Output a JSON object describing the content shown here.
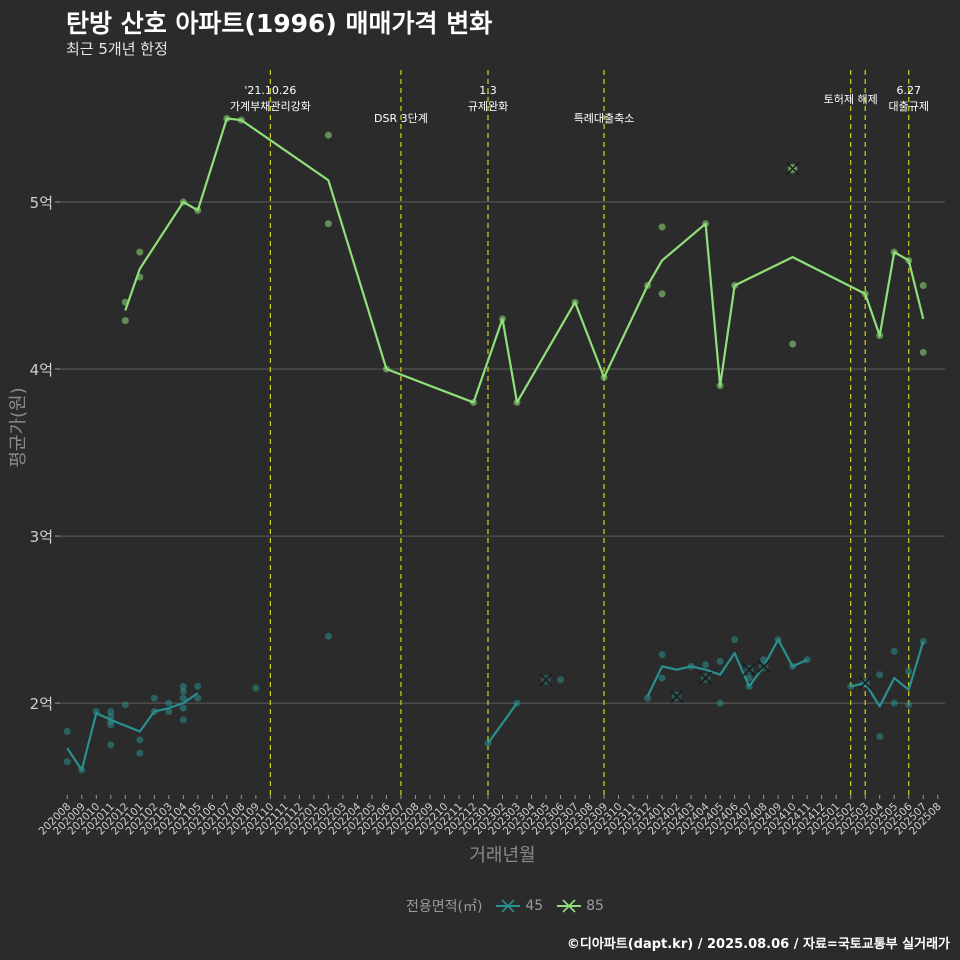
{
  "header": {
    "title": "탄방 산호 아파트(1996) 매매가격 변화",
    "subtitle": "최근 5개년 한정"
  },
  "footer": {
    "caption": "©디아파트(dapt.kr) / 2025.08.06 / 자료=국토교통부 실거래가"
  },
  "legend": {
    "title": "전용면적(㎡)",
    "items": [
      {
        "label": "45",
        "color": "#2a8f8f"
      },
      {
        "label": "85",
        "color": "#8fe07a"
      }
    ]
  },
  "chart_data": {
    "type": "line",
    "xlabel": "거래년월",
    "ylabel": "평균가(원)",
    "ylim": [
      1.45,
      5.85
    ],
    "yticks": [
      2,
      3,
      4,
      5
    ],
    "ytick_labels": [
      "2억",
      "3억",
      "4억",
      "5억"
    ],
    "grid": true,
    "legend_position": "bottom",
    "months": [
      "202008",
      "202009",
      "202010",
      "202011",
      "202012",
      "202101",
      "202102",
      "202103",
      "202104",
      "202105",
      "202106",
      "202107",
      "202108",
      "202109",
      "202110",
      "202111",
      "202112",
      "202201",
      "202202",
      "202203",
      "202204",
      "202205",
      "202206",
      "202207",
      "202208",
      "202209",
      "202210",
      "202211",
      "202212",
      "202301",
      "202302",
      "202303",
      "202304",
      "202305",
      "202306",
      "202307",
      "202308",
      "202309",
      "202310",
      "202311",
      "202312",
      "202401",
      "202402",
      "202403",
      "202404",
      "202405",
      "202406",
      "202407",
      "202408",
      "202409",
      "202410",
      "202411",
      "202412",
      "202501",
      "202502",
      "202503",
      "202504",
      "202505",
      "202506",
      "202507",
      "202508"
    ],
    "events": [
      {
        "month": "202110",
        "label": "'21.10.26\n가계부채관리강화",
        "row": 0
      },
      {
        "month": "202207",
        "label": "DSR 3단계",
        "row": 1
      },
      {
        "month": "202301",
        "label": "1.3\n규제완화",
        "row": 0
      },
      {
        "month": "202309",
        "label": "특례대출축소",
        "row": 1
      },
      {
        "month": "202502",
        "label": "토허제 해제",
        "row": 0
      },
      {
        "month": "202503",
        "label": "",
        "row": 0
      },
      {
        "month": "202506",
        "label": "6.27\n대출규제",
        "row": 0
      }
    ],
    "series": [
      {
        "name": "45",
        "color": "#2a8f8f",
        "line": [
          [
            "202008",
            1.73
          ],
          [
            "202009",
            1.6
          ],
          [
            "202010",
            1.94
          ],
          [
            "202011",
            1.9
          ],
          [
            "202101",
            1.83
          ],
          [
            "202102",
            1.95
          ],
          [
            "202103",
            1.97
          ],
          [
            "202104",
            2.0
          ],
          [
            "202105",
            2.06
          ],
          null,
          [
            "202301",
            1.76
          ],
          [
            "202303",
            2.0
          ],
          null,
          [
            "202312",
            2.04
          ],
          [
            "202401",
            2.22
          ],
          [
            "202402",
            2.2
          ],
          [
            "202403",
            2.22
          ],
          [
            "202404",
            2.2
          ],
          [
            "202405",
            2.17
          ],
          [
            "202406",
            2.3
          ],
          [
            "202407",
            2.1
          ],
          [
            "202408",
            2.22
          ],
          [
            "202409",
            2.38
          ],
          [
            "202410",
            2.22
          ],
          [
            "202411",
            2.26
          ],
          null,
          [
            "202502",
            2.1
          ],
          [
            "202503",
            2.12
          ],
          [
            "202504",
            1.98
          ],
          [
            "202505",
            2.15
          ],
          [
            "202506",
            2.08
          ],
          [
            "202507",
            2.37
          ]
        ],
        "points": [
          [
            "202008",
            1.83
          ],
          [
            "202008",
            1.65
          ],
          [
            "202009",
            1.6
          ],
          [
            "202010",
            1.95
          ],
          [
            "202011",
            1.95
          ],
          [
            "202011",
            1.92
          ],
          [
            "202011",
            1.89
          ],
          [
            "202011",
            1.87
          ],
          [
            "202011",
            1.75
          ],
          [
            "202012",
            1.99
          ],
          [
            "202101",
            1.78
          ],
          [
            "202101",
            1.7
          ],
          [
            "202102",
            2.03
          ],
          [
            "202102",
            1.95
          ],
          [
            "202103",
            2.0
          ],
          [
            "202103",
            1.95
          ],
          [
            "202104",
            2.1
          ],
          [
            "202104",
            2.07
          ],
          [
            "202104",
            2.03
          ],
          [
            "202104",
            1.97
          ],
          [
            "202104",
            1.9
          ],
          [
            "202105",
            2.1
          ],
          [
            "202105",
            2.03
          ],
          [
            "202109",
            2.09
          ],
          [
            "202202",
            2.4
          ],
          [
            "202301",
            1.76
          ],
          [
            "202303",
            2.0
          ],
          [
            "202306",
            2.14
          ],
          [
            "202312",
            2.03
          ],
          [
            "202401",
            2.29
          ],
          [
            "202401",
            2.15
          ],
          [
            "202403",
            2.22
          ],
          [
            "202404",
            2.23
          ],
          [
            "202405",
            2.25
          ],
          [
            "202405",
            2.0
          ],
          [
            "202406",
            2.38
          ],
          [
            "202407",
            2.15
          ],
          [
            "202407",
            2.1
          ],
          [
            "202408",
            2.26
          ],
          [
            "202409",
            2.38
          ],
          [
            "202410",
            2.22
          ],
          [
            "202411",
            2.26
          ],
          [
            "202502",
            2.1
          ],
          [
            "202503",
            2.12
          ],
          [
            "202504",
            2.17
          ],
          [
            "202504",
            1.8
          ],
          [
            "202505",
            2.31
          ],
          [
            "202505",
            2.0
          ],
          [
            "202506",
            2.19
          ],
          [
            "202506",
            1.99
          ],
          [
            "202507",
            2.37
          ]
        ],
        "cancelled": [
          [
            "202305",
            2.14
          ],
          [
            "202402",
            2.04
          ],
          [
            "202404",
            2.15
          ],
          [
            "202407",
            2.2
          ],
          [
            "202408",
            2.22
          ],
          [
            "202503",
            2.12
          ]
        ]
      },
      {
        "name": "85",
        "color": "#8fe07a",
        "line": [
          [
            "202012",
            4.35
          ],
          [
            "202101",
            4.6
          ],
          [
            "202104",
            5.0
          ],
          [
            "202105",
            4.95
          ],
          [
            "202107",
            5.5
          ],
          [
            "202108",
            5.49
          ],
          [
            "202202",
            5.13
          ],
          [
            "202206",
            4.0
          ],
          [
            "202212",
            3.8
          ],
          [
            "202302",
            4.3
          ],
          [
            "202303",
            3.8
          ],
          [
            "202307",
            4.4
          ],
          [
            "202309",
            3.95
          ],
          [
            "202312",
            4.5
          ],
          [
            "202401",
            4.65
          ],
          [
            "202404",
            4.87
          ],
          [
            "202405",
            3.9
          ],
          [
            "202406",
            4.5
          ],
          [
            "202410",
            4.67
          ],
          [
            "202503",
            4.45
          ],
          [
            "202504",
            4.2
          ],
          [
            "202505",
            4.7
          ],
          [
            "202506",
            4.65
          ],
          [
            "202507",
            4.3
          ]
        ],
        "points": [
          [
            "202012",
            4.4
          ],
          [
            "202012",
            4.29
          ],
          [
            "202101",
            4.7
          ],
          [
            "202101",
            4.55
          ],
          [
            "202104",
            5.0
          ],
          [
            "202105",
            4.95
          ],
          [
            "202107",
            5.5
          ],
          [
            "202108",
            5.49
          ],
          [
            "202202",
            5.4
          ],
          [
            "202202",
            4.87
          ],
          [
            "202206",
            4.0
          ],
          [
            "202212",
            3.8
          ],
          [
            "202302",
            4.3
          ],
          [
            "202303",
            3.8
          ],
          [
            "202307",
            4.4
          ],
          [
            "202309",
            3.95
          ],
          [
            "202312",
            4.5
          ],
          [
            "202401",
            4.85
          ],
          [
            "202401",
            4.45
          ],
          [
            "202404",
            4.87
          ],
          [
            "202405",
            3.9
          ],
          [
            "202406",
            4.5
          ],
          [
            "202410",
            5.2
          ],
          [
            "202410",
            4.15
          ],
          [
            "202503",
            4.45
          ],
          [
            "202504",
            4.2
          ],
          [
            "202505",
            4.7
          ],
          [
            "202506",
            4.65
          ],
          [
            "202507",
            4.5
          ],
          [
            "202507",
            4.1
          ]
        ],
        "cancelled": [
          [
            "202410",
            5.2
          ]
        ]
      }
    ]
  }
}
